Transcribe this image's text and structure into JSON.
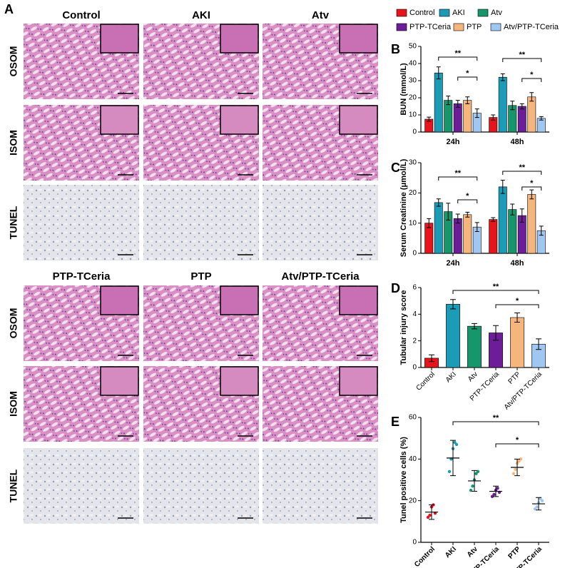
{
  "panel_a": {
    "label": "A",
    "groups": [
      "Control",
      "AKI",
      "Atv",
      "PTP-TCeria",
      "PTP",
      "Atv/PTP-TCeria"
    ],
    "rows": [
      "OSOM",
      "ISOM",
      "TUNEL"
    ]
  },
  "chart_data": [
    {
      "type": "bar",
      "label": "B",
      "ylabel": "BUN (mmol/L)",
      "categories": [
        "24h",
        "48h"
      ],
      "ylim": [
        0,
        50
      ],
      "yticks": [
        0,
        10,
        20,
        30,
        40,
        50
      ],
      "series": [
        {
          "name": "Control",
          "color": "#e8141b",
          "values": [
            7.5,
            8.5
          ],
          "errors": [
            1.2,
            1.5
          ]
        },
        {
          "name": "AKI",
          "color": "#1b9bb5",
          "values": [
            34.5,
            32
          ],
          "errors": [
            3.5,
            2
          ]
        },
        {
          "name": "Atv",
          "color": "#16976b",
          "values": [
            18.5,
            15.5
          ],
          "errors": [
            2.5,
            2.5
          ]
        },
        {
          "name": "PTP-TCeria",
          "color": "#6c1d97",
          "values": [
            16.5,
            15
          ],
          "errors": [
            2,
            1.5
          ]
        },
        {
          "name": "PTP",
          "color": "#f4b67d",
          "values": [
            18.5,
            20.5
          ],
          "errors": [
            2,
            2.5
          ]
        },
        {
          "name": "Atv/PTP-TCeria",
          "color": "#9fc7f2",
          "values": [
            11,
            8
          ],
          "errors": [
            2.5,
            1
          ]
        }
      ],
      "annotations": [
        "**",
        "*",
        "**",
        "*"
      ]
    },
    {
      "type": "bar",
      "label": "C",
      "ylabel": "Serum Creatinine (μmol/L)",
      "categories": [
        "24h",
        "48h"
      ],
      "ylim": [
        0,
        30
      ],
      "yticks": [
        0,
        10,
        20,
        30
      ],
      "series": [
        {
          "name": "Control",
          "color": "#e8141b",
          "values": [
            10,
            11.2
          ],
          "errors": [
            1.5,
            0.6
          ]
        },
        {
          "name": "AKI",
          "color": "#1b9bb5",
          "values": [
            16.8,
            22
          ],
          "errors": [
            1.2,
            2.2
          ]
        },
        {
          "name": "Atv",
          "color": "#16976b",
          "values": [
            13.8,
            14.5
          ],
          "errors": [
            2.8,
            1.8
          ]
        },
        {
          "name": "PTP-TCeria",
          "color": "#6c1d97",
          "values": [
            11.5,
            12.5
          ],
          "errors": [
            1.5,
            2.2
          ]
        },
        {
          "name": "PTP",
          "color": "#f4b67d",
          "values": [
            12.8,
            19.5
          ],
          "errors": [
            0.8,
            1.5
          ]
        },
        {
          "name": "Atv/PTP-TCeria",
          "color": "#9fc7f2",
          "values": [
            8.7,
            7.5
          ],
          "errors": [
            1.5,
            1.5
          ]
        }
      ],
      "annotations": [
        "**",
        "*",
        "**",
        "*"
      ]
    },
    {
      "type": "bar",
      "label": "D",
      "ylabel": "Tubular injury score",
      "categories": [
        "Control",
        "AKI",
        "Atv",
        "PTP-TCeria",
        "PTP",
        "Atv/PTP-TCeria"
      ],
      "colors": [
        "#e8141b",
        "#1b9bb5",
        "#16976b",
        "#6c1d97",
        "#f4b67d",
        "#9fc7f2"
      ],
      "values": [
        0.7,
        4.75,
        3.1,
        2.6,
        3.75,
        1.75
      ],
      "errors": [
        0.25,
        0.35,
        0.2,
        0.55,
        0.35,
        0.4
      ],
      "ylim": [
        0,
        6
      ],
      "yticks": [
        0,
        2,
        4,
        6
      ],
      "annotations": [
        "**",
        "*"
      ]
    },
    {
      "type": "dot",
      "label": "E",
      "ylabel": "Tunel positive cells (%)",
      "categories": [
        "Control",
        "AKI",
        "Atv",
        "PTP-TCeria",
        "PTP",
        "Atv/PTP-TCeria"
      ],
      "colors": [
        "#e8141b",
        "#1b9bb5",
        "#16976b",
        "#6c1d97",
        "#f4b67d",
        "#9fc7f2"
      ],
      "values": [
        14.5,
        40.5,
        29.5,
        24.5,
        36,
        18.5
      ],
      "errors": [
        3.5,
        8.5,
        5,
        2.5,
        4,
        3
      ],
      "points": [
        [
          12,
          13,
          17,
          18,
          14
        ],
        [
          34,
          40,
          45,
          48,
          47
        ],
        [
          25,
          27,
          30,
          33,
          34
        ],
        [
          22,
          23,
          25,
          26,
          24
        ],
        [
          33,
          35,
          38,
          39,
          40
        ],
        [
          16,
          17,
          19,
          21,
          20
        ]
      ],
      "ylim": [
        0,
        60
      ],
      "yticks": [
        0,
        20,
        40,
        60
      ],
      "annotations": [
        "**",
        "*"
      ]
    }
  ]
}
